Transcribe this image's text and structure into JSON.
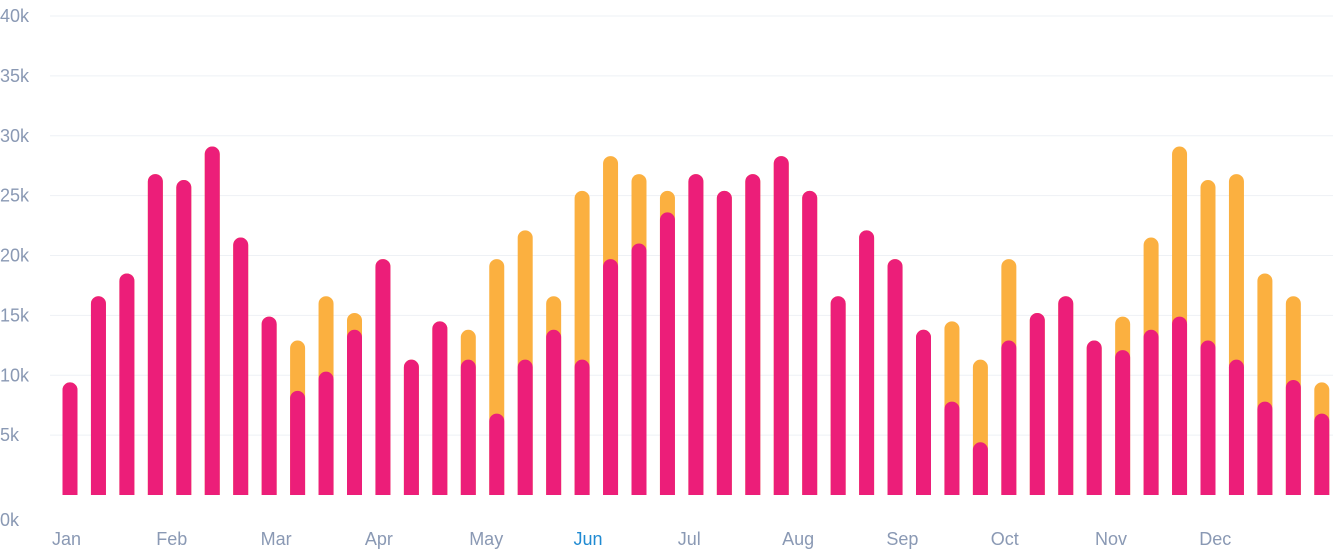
{
  "chart_data": {
    "type": "bar",
    "title": "",
    "xlabel": "",
    "ylabel": "",
    "ylim": [
      0,
      40000
    ],
    "y_ticks": [
      "0k",
      "5k",
      "10k",
      "15k",
      "20k",
      "25k",
      "30k",
      "35k",
      "40k"
    ],
    "y_tick_values": [
      0,
      5000,
      10000,
      15000,
      20000,
      25000,
      30000,
      35000,
      40000
    ],
    "month_labels": [
      "Jan",
      "Feb",
      "Mar",
      "Apr",
      "May",
      "Jun",
      "Jul",
      "Aug",
      "Sep",
      "Oct",
      "Nov",
      "Dec"
    ],
    "active_month": "Jun",
    "grid": true,
    "colors": {
      "back": "#fbb040",
      "front": "#ec1e79",
      "active_label": "#1f8ad2",
      "tick": "#8a99b4"
    },
    "series": [
      {
        "values": [
          9400,
          16600,
          18500,
          26800,
          26300,
          29100,
          21500,
          14900,
          12900,
          16600,
          15200,
          19700,
          11300,
          14500,
          13800,
          19700,
          22100,
          16600,
          25400,
          28300,
          26800,
          25400,
          26800,
          25400,
          26800,
          28300,
          25400,
          16600,
          22100,
          19700,
          13800,
          14500,
          11300,
          19700,
          15200,
          16600,
          12900,
          14900,
          21500,
          29100,
          26300,
          26800,
          18500,
          16600,
          9400
        ]
      },
      {
        "values": [
          9400,
          16600,
          18500,
          26800,
          26300,
          29100,
          21500,
          14900,
          8700,
          10300,
          13800,
          19700,
          11300,
          14500,
          11300,
          6800,
          11300,
          13800,
          11300,
          19700,
          21000,
          23600,
          26800,
          25400,
          26800,
          28300,
          25400,
          16600,
          22100,
          19700,
          13800,
          7800,
          4400,
          12900,
          15200,
          16600,
          12900,
          12100,
          13800,
          14900,
          12900,
          11300,
          7800,
          9600,
          6800
        ]
      }
    ]
  }
}
